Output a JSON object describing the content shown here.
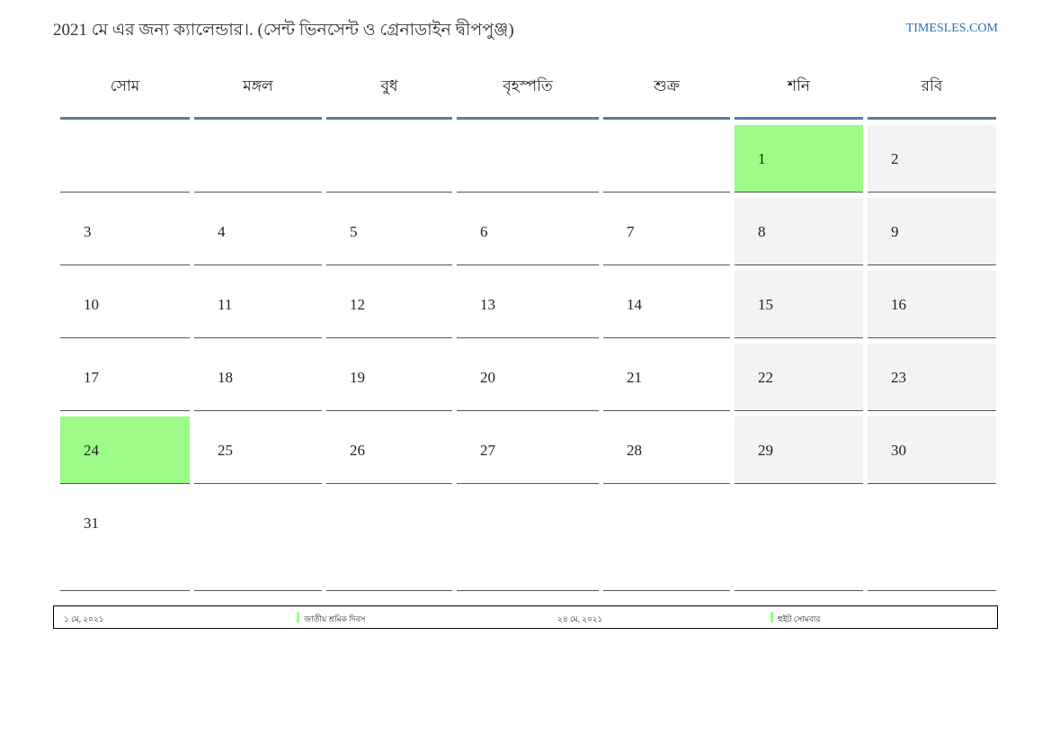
{
  "header": {
    "title": "2021 মে এর জন্য ক্যালেন্ডার।. (সেন্ট ভিনসেন্ট ও গ্রেনাডাইন দ্বীপপুঞ্জ)",
    "site": "TIMESLES.COM"
  },
  "weekdays": [
    "সোম",
    "মঙ্গল",
    "বুধ",
    "বৃহস্পতি",
    "শুক্র",
    "শনি",
    "রবি"
  ],
  "weeks": [
    [
      "",
      "",
      "",
      "",
      "",
      "1",
      "2"
    ],
    [
      "3",
      "4",
      "5",
      "6",
      "7",
      "8",
      "9"
    ],
    [
      "10",
      "11",
      "12",
      "13",
      "14",
      "15",
      "16"
    ],
    [
      "17",
      "18",
      "19",
      "20",
      "21",
      "22",
      "23"
    ],
    [
      "24",
      "25",
      "26",
      "27",
      "28",
      "29",
      "30"
    ],
    [
      "31",
      "",
      "",
      "",
      "",
      "",
      ""
    ]
  ],
  "holiday_days": [
    "1",
    "24"
  ],
  "colors": {
    "holiday": "#9dfb87",
    "weekend": "#f3f3f3",
    "header_rule": "#5b7aa5",
    "link": "#2e6ea6"
  },
  "footer": {
    "holiday1_date": "১ মে, ২০২১",
    "holiday1_name": "জাতীয় শ্রমিক দিবস",
    "holiday2_date": "২৪ মে, ২০২১",
    "holiday2_name": "হুইট সোমবার"
  }
}
